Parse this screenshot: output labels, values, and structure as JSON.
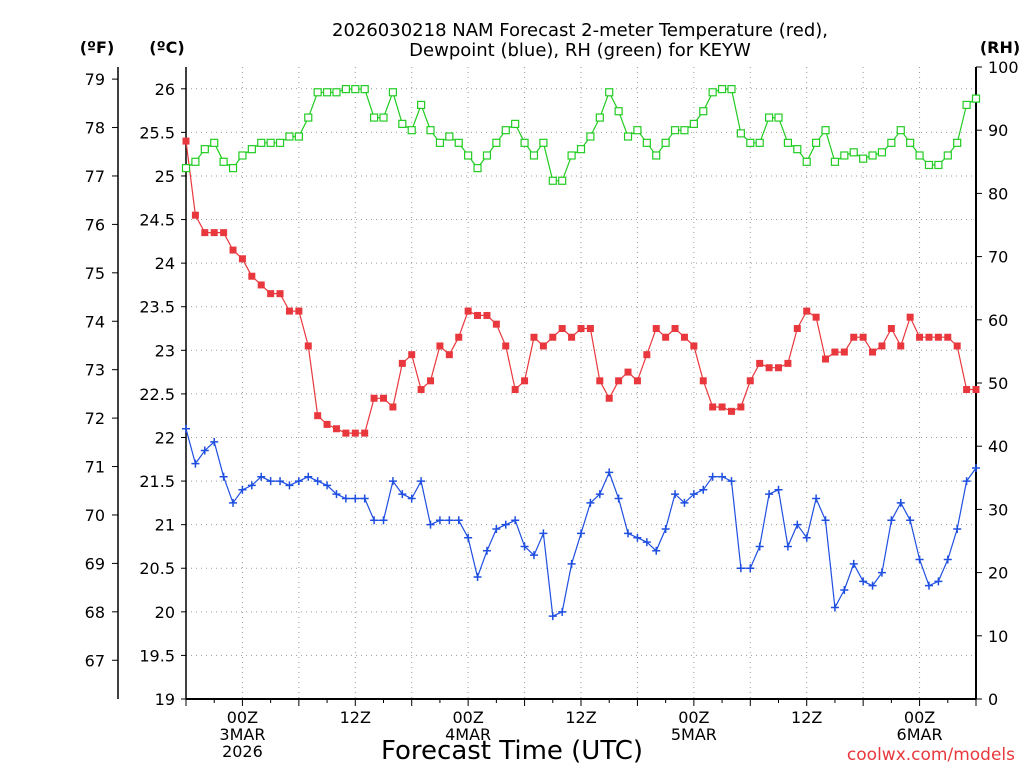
{
  "chart_data": {
    "type": "line",
    "title_line1": "2026030218 NAM Forecast 2-meter Temperature (red),",
    "title_line2": "Dewpoint (blue), RH (green) for KEYW",
    "unit_f": "(ºF)",
    "unit_c": "(ºC)",
    "unit_rh": "(RH)",
    "xlabel": "Forecast Time (UTC)",
    "credit": "coolwx.com/models",
    "grid": true,
    "x_range_hours": [
      0,
      84
    ],
    "x_ticks": [
      {
        "hour": 6,
        "lines": [
          "00Z",
          "3MAR",
          "2026"
        ]
      },
      {
        "hour": 18,
        "lines": [
          "12Z"
        ]
      },
      {
        "hour": 30,
        "lines": [
          "00Z",
          "4MAR"
        ]
      },
      {
        "hour": 42,
        "lines": [
          "12Z"
        ]
      },
      {
        "hour": 54,
        "lines": [
          "00Z",
          "5MAR"
        ]
      },
      {
        "hour": 66,
        "lines": [
          "12Z"
        ]
      },
      {
        "hour": 78,
        "lines": [
          "00Z",
          "6MAR"
        ]
      }
    ],
    "y_left_c": {
      "range": [
        19,
        26.25
      ],
      "ticks": [
        "19",
        "19.5",
        "20",
        "20.5",
        "21",
        "21.5",
        "22",
        "22.5",
        "23",
        "23.5",
        "24",
        "24.5",
        "25",
        "25.5",
        "26"
      ]
    },
    "y_left_f": {
      "ticks": [
        "67",
        "68",
        "69",
        "70",
        "71",
        "72",
        "73",
        "74",
        "75",
        "76",
        "77",
        "78",
        "79"
      ]
    },
    "y_right_rh": {
      "range": [
        0,
        100
      ],
      "ticks": [
        "0",
        "10",
        "20",
        "30",
        "40",
        "50",
        "60",
        "70",
        "80",
        "90",
        "100"
      ]
    },
    "series": [
      {
        "name": "2-meter Temperature",
        "color": "#e8383d",
        "marker": "filled-square",
        "axis": "celsius",
        "values": [
          25.4,
          24.55,
          24.35,
          24.35,
          24.35,
          24.15,
          24.05,
          23.85,
          23.75,
          23.65,
          23.65,
          23.45,
          23.45,
          23.05,
          22.25,
          22.15,
          22.1,
          22.05,
          22.05,
          22.05,
          22.45,
          22.45,
          22.35,
          22.85,
          22.95,
          22.55,
          22.65,
          23.05,
          22.95,
          23.15,
          23.45,
          23.4,
          23.4,
          23.3,
          23.05,
          22.55,
          22.65,
          23.15,
          23.05,
          23.15,
          23.25,
          23.15,
          23.25,
          23.25,
          22.65,
          22.45,
          22.65,
          22.75,
          22.65,
          22.95,
          23.25,
          23.15,
          23.25,
          23.15,
          23.05,
          22.65,
          22.35,
          22.35,
          22.3,
          22.35,
          22.65,
          22.85,
          22.8,
          22.8,
          22.85,
          23.25,
          23.45,
          23.38,
          22.9,
          22.98,
          22.98,
          23.15,
          23.15,
          22.98,
          23.05,
          23.25,
          23.05,
          23.38,
          23.15,
          23.15,
          23.15,
          23.15,
          23.05,
          22.55,
          22.55
        ]
      },
      {
        "name": "Dewpoint",
        "color": "#1f4fe0",
        "marker": "plus",
        "axis": "celsius",
        "values": [
          22.1,
          21.7,
          21.85,
          21.95,
          21.55,
          21.25,
          21.4,
          21.45,
          21.55,
          21.5,
          21.5,
          21.45,
          21.5,
          21.55,
          21.5,
          21.45,
          21.35,
          21.3,
          21.3,
          21.3,
          21.05,
          21.05,
          21.5,
          21.35,
          21.3,
          21.5,
          21.0,
          21.05,
          21.05,
          21.05,
          20.85,
          20.4,
          20.7,
          20.95,
          21.0,
          21.05,
          20.75,
          20.65,
          20.9,
          19.95,
          20.0,
          20.55,
          20.9,
          21.25,
          21.35,
          21.6,
          21.3,
          20.9,
          20.85,
          20.8,
          20.7,
          20.95,
          21.35,
          21.25,
          21.35,
          21.4,
          21.55,
          21.55,
          21.5,
          20.5,
          20.5,
          20.75,
          21.35,
          21.4,
          20.75,
          21.0,
          20.85,
          21.3,
          21.05,
          20.05,
          20.25,
          20.55,
          20.35,
          20.3,
          20.45,
          21.05,
          21.25,
          21.05,
          20.6,
          20.3,
          20.35,
          20.6,
          20.95,
          21.5,
          21.65
        ]
      },
      {
        "name": "RH",
        "color": "#22cc22",
        "marker": "open-square",
        "axis": "rh",
        "values": [
          84,
          85,
          87,
          88,
          85,
          84,
          86,
          87,
          88,
          88,
          88,
          89,
          89,
          92,
          96,
          96,
          96,
          96.5,
          96.5,
          96.5,
          92,
          92,
          96,
          91,
          90,
          94,
          90,
          88,
          89,
          88,
          86,
          84,
          86,
          88,
          90,
          91,
          88,
          86,
          88,
          82,
          82,
          86,
          87,
          89,
          92,
          96,
          93,
          89,
          90,
          88,
          86,
          88,
          90,
          90,
          91,
          93,
          96,
          96.5,
          96.5,
          89.5,
          88,
          88,
          92,
          92,
          88,
          87,
          85,
          88,
          90,
          85,
          86,
          86.5,
          85.5,
          86,
          86.5,
          88,
          90,
          88,
          86,
          84.5,
          84.5,
          86,
          88,
          94,
          95
        ]
      }
    ]
  }
}
